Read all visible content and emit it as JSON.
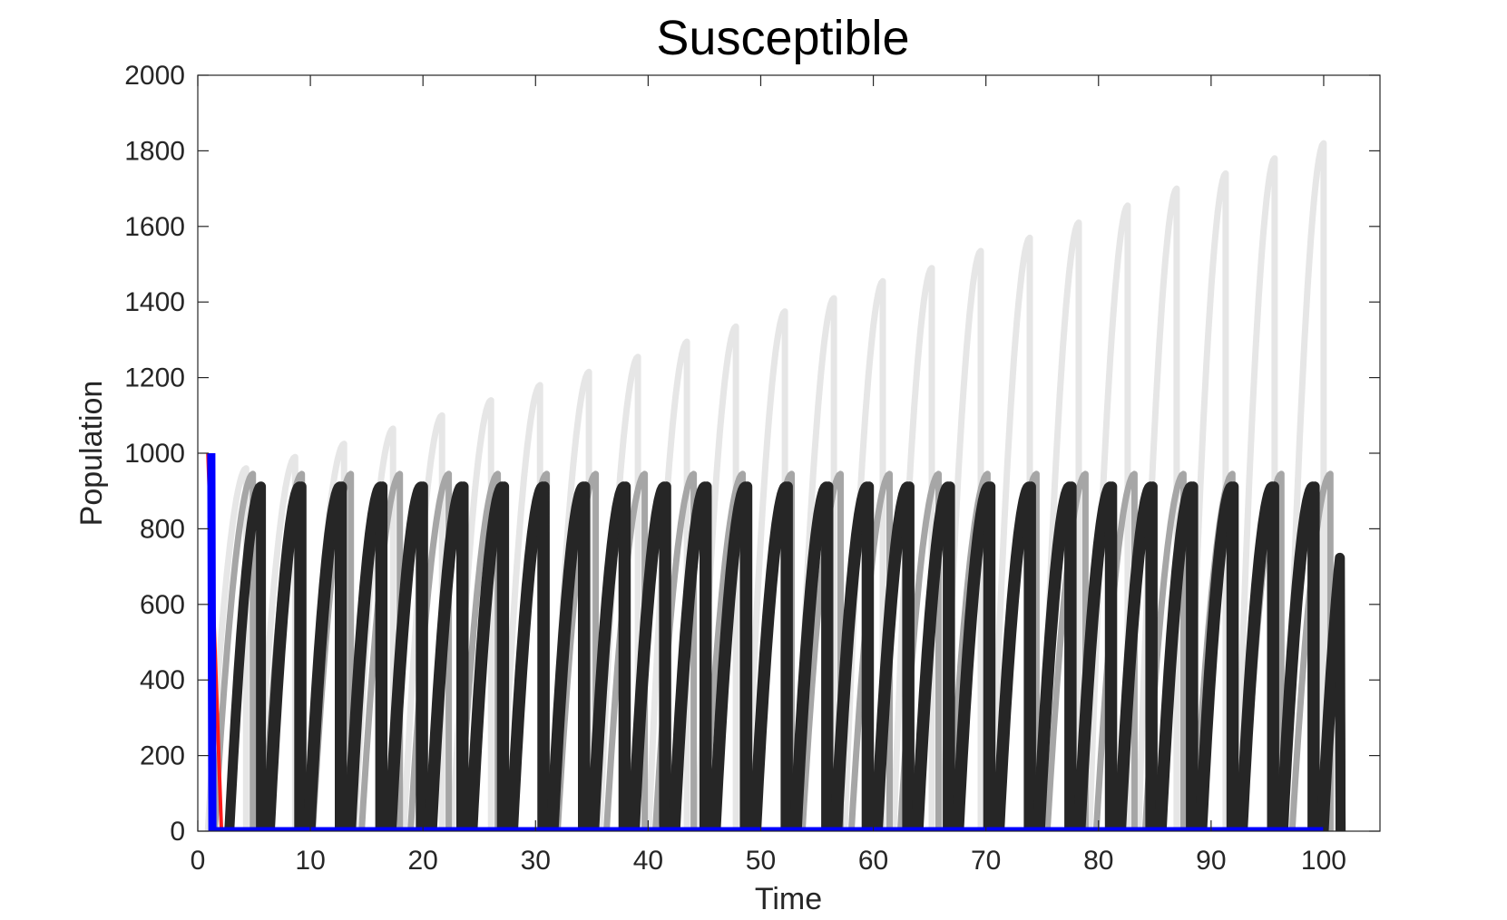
{
  "chart_data": {
    "type": "line",
    "title": "Susceptible",
    "xlabel": "Time",
    "ylabel": "Population",
    "xlim": [
      0,
      105
    ],
    "ylim": [
      0,
      2000
    ],
    "xticks": [
      0,
      10,
      20,
      30,
      40,
      50,
      60,
      70,
      80,
      90,
      100
    ],
    "yticks": [
      0,
      200,
      400,
      600,
      800,
      1000,
      1200,
      1400,
      1600,
      1800,
      2000
    ],
    "xtick_labels": [
      "0",
      "10",
      "20",
      "30",
      "40",
      "50",
      "60",
      "70",
      "80",
      "90",
      "100"
    ],
    "ytick_labels": [
      "0",
      "200",
      "400",
      "600",
      "800",
      "1000",
      "1200",
      "1400",
      "1600",
      "1800",
      "2000"
    ],
    "grid": false,
    "legend": "none",
    "series": [
      {
        "color": "#e6e6e6",
        "pattern": "pulse-growth",
        "period": 4.35,
        "start_x": 0.9,
        "end_x": 101.5,
        "peaks": [
          960,
          990,
          1025,
          1065,
          1100,
          1140,
          1180,
          1215,
          1255,
          1295,
          1335,
          1375,
          1410,
          1455,
          1490,
          1535,
          1570,
          1610,
          1655,
          1700,
          1740,
          1780,
          1820,
          1865
        ]
      },
      {
        "color": "#a6a6a6",
        "pattern": "pulse-growth",
        "period": 4.35,
        "start_x": 0.9,
        "end_x": 101.5,
        "offset": 0.6,
        "peak": 945
      },
      {
        "color": "#262626",
        "pattern": "pulse-growth",
        "period": 3.6,
        "start_x": 2.8,
        "end_x": 101.5,
        "peak": 912
      },
      {
        "color": "#262626",
        "pattern": "pulse-growth",
        "period": 3.6,
        "start_x": 4.5,
        "end_x": 101.5,
        "offset": 1.7,
        "peak": 912
      },
      {
        "color": "#ff1a1a",
        "pattern": "decay",
        "points": [
          [
            0.9,
            1000
          ],
          [
            2.1,
            0
          ],
          [
            100,
            0
          ]
        ]
      },
      {
        "color": "#0000ff",
        "pattern": "decay",
        "points": [
          [
            1.2,
            1000
          ],
          [
            1.3,
            0
          ],
          [
            100,
            0
          ]
        ]
      }
    ]
  }
}
